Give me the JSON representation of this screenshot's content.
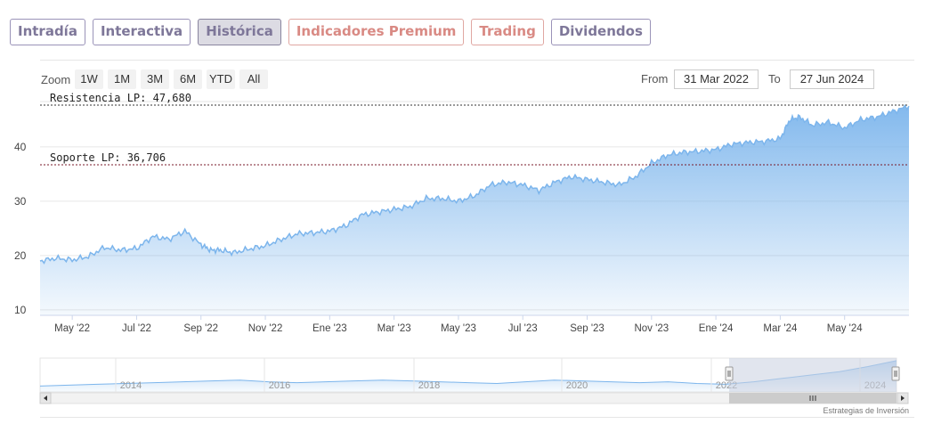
{
  "tabs": [
    {
      "label": "Intradía",
      "style": "purple"
    },
    {
      "label": "Interactiva",
      "style": "purple"
    },
    {
      "label": "Histórica",
      "style": "active"
    },
    {
      "label": "Indicadores Premium",
      "style": "salmon"
    },
    {
      "label": "Trading",
      "style": "salmon"
    },
    {
      "label": "Dividendos",
      "style": "purple"
    }
  ],
  "zoom": {
    "label": "Zoom",
    "buttons": [
      "1W",
      "1M",
      "3M",
      "6M",
      "YTD",
      "All"
    ]
  },
  "range": {
    "from_label": "From",
    "from_value": "31 Mar 2022",
    "to_label": "To",
    "to_value": "27 Jun 2024"
  },
  "credit": "Estrategias de Inversión",
  "colors": {
    "line": "#7cb5ec",
    "area_top": "#7cb5ec",
    "resistance": "#333333",
    "support": "#7a1a2a",
    "navigator_mask": "#c8cfe0"
  },
  "chart_data": {
    "type": "area",
    "y_ticks": [
      10,
      20,
      30,
      40
    ],
    "ylim": [
      9,
      49
    ],
    "x_ticks": [
      "May '22",
      "Jul '22",
      "Sep '22",
      "Nov '22",
      "Ene '23",
      "Mar '23",
      "May '23",
      "Jul '23",
      "Sep '23",
      "Nov '23",
      "Ene '24",
      "Mar '24",
      "May '24"
    ],
    "x_tick_months": [
      1,
      3,
      5,
      7,
      9,
      11,
      13,
      15,
      17,
      19,
      21,
      23,
      25
    ],
    "x_months_span": [
      0,
      27
    ],
    "x_month_zero": "Apr 2022",
    "series": [
      {
        "months": [
          0,
          0.5,
          1,
          1.5,
          2,
          2.5,
          3,
          3.5,
          4,
          4.5,
          5,
          5.3,
          5.6,
          6,
          6.5,
          7,
          7.5,
          8,
          8.5,
          9,
          9.5,
          10,
          10.5,
          11,
          11.5,
          12,
          12.5,
          13,
          13.5,
          14,
          14.5,
          15,
          15.5,
          16,
          16.5,
          17,
          17.5,
          18,
          18.5,
          19,
          19.5,
          20,
          20.5,
          21,
          21.5,
          22,
          22.5,
          23,
          23.3,
          23.6,
          24,
          24.5,
          25,
          25.5,
          26,
          26.5,
          27
        ],
        "values": [
          19.0,
          19.5,
          19.2,
          19.8,
          21.5,
          21.0,
          21.3,
          23.5,
          23.0,
          24.5,
          22.0,
          21.0,
          21.0,
          20.5,
          21.2,
          21.8,
          23.0,
          24.0,
          24.2,
          24.5,
          25.5,
          27.5,
          28.0,
          28.5,
          29.0,
          30.5,
          30.5,
          30.0,
          31.0,
          33.0,
          33.5,
          33.0,
          32.0,
          33.5,
          34.5,
          34.0,
          33.5,
          33.0,
          34.5,
          37.0,
          38.5,
          39.0,
          39.2,
          39.5,
          40.5,
          40.8,
          41.0,
          41.5,
          45.0,
          45.5,
          44.0,
          44.5,
          43.5,
          45.0,
          45.5,
          46.5,
          47.5
        ]
      }
    ],
    "annotations": [
      {
        "label": "Resistencia LP: 47,680",
        "value": 47.68
      },
      {
        "label": "Soporte LP: 36,706",
        "value": 36.706
      }
    ],
    "navigator": {
      "labels": [
        "2014",
        "2016",
        "2018",
        "2020",
        "2022",
        "2024"
      ],
      "values": [
        17,
        18,
        19,
        20,
        21,
        22,
        23,
        24,
        22,
        21,
        22,
        23,
        24,
        23,
        22,
        21,
        20,
        22,
        24,
        23,
        22,
        21,
        22,
        20,
        19,
        22,
        26,
        30,
        34,
        40,
        47
      ]
    }
  }
}
